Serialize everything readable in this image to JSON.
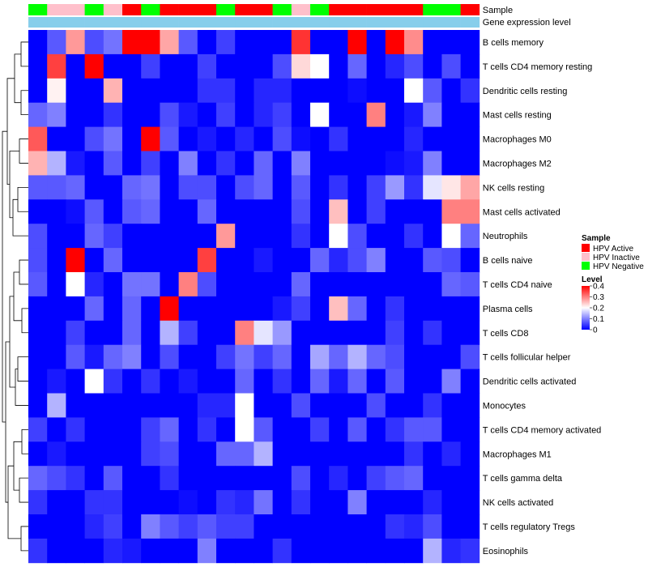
{
  "chart_data": {
    "type": "heatmap",
    "title": "",
    "annotation_rows": [
      {
        "label": "Sample"
      },
      {
        "label": "Gene expression level"
      }
    ],
    "sample_groups": [
      "HPV Negative",
      "HPV Inactive",
      "HPV Inactive",
      "HPV Negative",
      "HPV Inactive",
      "HPV Active",
      "HPV Negative",
      "HPV Active",
      "HPV Active",
      "HPV Active",
      "HPV Negative",
      "HPV Active",
      "HPV Active",
      "HPV Negative",
      "HPV Inactive",
      "HPV Negative",
      "HPV Active",
      "HPV Active",
      "HPV Active",
      "HPV Active",
      "HPV Active",
      "HPV Negative",
      "HPV Negative",
      "HPV Active"
    ],
    "rows": [
      "B cells memory",
      "T cells CD4 memory resting",
      "Dendritic cells resting",
      "Mast cells resting",
      "Macrophages M0",
      "Macrophages M2",
      "NK cells resting",
      "Mast cells activated",
      "Neutrophils",
      "B cells naive",
      "T cells CD4 naive",
      "Plasma cells",
      "T cells CD8",
      "T cells follicular helper",
      "Dendritic cells activated",
      "Monocytes",
      "T cells CD4 memory activated",
      "Macrophages M1",
      "T cells gamma delta",
      "NK cells activated",
      "T cells regulatory  Tregs",
      "Eosinophils"
    ],
    "values": [
      [
        0,
        0.07,
        0.28,
        0.06,
        0.09,
        0.4,
        0.4,
        0.27,
        0.07,
        0,
        0.05,
        0,
        0,
        0,
        0.36,
        0,
        0,
        0.4,
        0,
        0.4,
        0.29,
        0,
        0,
        0
      ],
      [
        0,
        0.35,
        0,
        0.4,
        0,
        0,
        0.05,
        0,
        0,
        0.05,
        0,
        0,
        0,
        0.06,
        0.23,
        0.2,
        0,
        0.08,
        0,
        0.03,
        0.06,
        0,
        0.06,
        0
      ],
      [
        0,
        0.21,
        0,
        0,
        0.26,
        0,
        0,
        0,
        0,
        0.04,
        0.04,
        0,
        0.03,
        0.03,
        0,
        0,
        0,
        0.01,
        0,
        0,
        0.2,
        0.07,
        0,
        0.04
      ],
      [
        0.08,
        0.1,
        0,
        0,
        0.04,
        0,
        0,
        0.06,
        0.02,
        0,
        0.05,
        0,
        0.03,
        0.05,
        0,
        0.2,
        0,
        0,
        0.3,
        0,
        0.02,
        0.1,
        0,
        0
      ],
      [
        0.33,
        0,
        0,
        0.06,
        0.09,
        0,
        0.4,
        0.07,
        0,
        0.02,
        0,
        0.03,
        0,
        0.06,
        0.01,
        0,
        0.04,
        0,
        0,
        0,
        0.03,
        0,
        0,
        0
      ],
      [
        0.26,
        0.14,
        0.02,
        0,
        0.07,
        0,
        0.05,
        0,
        0.1,
        0,
        0.04,
        0,
        0.08,
        0,
        0.1,
        0,
        0,
        0,
        0,
        0.01,
        0.02,
        0.1,
        0,
        0
      ],
      [
        0.07,
        0.07,
        0.08,
        0,
        0,
        0.08,
        0.09,
        0,
        0.06,
        0.06,
        0,
        0.06,
        0.08,
        0,
        0.07,
        0,
        0.04,
        0,
        0.05,
        0.12,
        0.04,
        0.18,
        0.22,
        0.27
      ],
      [
        0,
        0,
        0.01,
        0.07,
        0,
        0.07,
        0.08,
        0,
        0,
        0.08,
        0,
        0,
        0,
        0,
        0.06,
        0,
        0.25,
        0,
        0.05,
        0,
        0,
        0,
        0.3,
        0.3
      ],
      [
        0.06,
        0,
        0,
        0.08,
        0.05,
        0,
        0,
        0,
        0,
        0,
        0.28,
        0,
        0,
        0,
        0.04,
        0,
        0.2,
        0.06,
        0,
        0,
        0.04,
        0,
        0.2,
        0.08
      ],
      [
        0.06,
        0,
        0.4,
        0,
        0.08,
        0,
        0,
        0,
        0,
        0.35,
        0,
        0,
        0.02,
        0,
        0,
        0.08,
        0.03,
        0.06,
        0.1,
        0,
        0,
        0.07,
        0.06,
        0
      ],
      [
        0.07,
        0,
        0.2,
        0.03,
        0,
        0.09,
        0.09,
        0,
        0.3,
        0.06,
        0,
        0,
        0,
        0,
        0.08,
        0,
        0,
        0,
        0,
        0,
        0,
        0,
        0.08,
        0.07
      ],
      [
        0,
        0,
        0,
        0.08,
        0,
        0.08,
        0,
        0.4,
        0,
        0,
        0,
        0,
        0,
        0.02,
        0.05,
        0,
        0.25,
        0.08,
        0,
        0.04,
        0,
        0,
        0,
        0
      ],
      [
        0,
        0,
        0.05,
        0,
        0,
        0.08,
        0,
        0.14,
        0.05,
        0,
        0,
        0.3,
        0.18,
        0.12,
        0,
        0,
        0,
        0,
        0,
        0.05,
        0,
        0.04,
        0,
        0
      ],
      [
        0,
        0,
        0.07,
        0.02,
        0.08,
        0.1,
        0,
        0.06,
        0,
        0,
        0.05,
        0.09,
        0.05,
        0.08,
        0,
        0.13,
        0.08,
        0.14,
        0.08,
        0.06,
        0,
        0,
        0,
        0.06
      ],
      [
        0,
        0.02,
        0,
        0.2,
        0.04,
        0,
        0.04,
        0,
        0.02,
        0,
        0,
        0.08,
        0,
        0.04,
        0,
        0.08,
        0.02,
        0.08,
        0,
        0.07,
        0,
        0,
        0.1,
        0
      ],
      [
        0,
        0.14,
        0,
        0,
        0,
        0,
        0,
        0,
        0,
        0.03,
        0.03,
        0.2,
        0,
        0,
        0.06,
        0,
        0,
        0,
        0.06,
        0,
        0,
        0.04,
        0,
        0
      ],
      [
        0.05,
        0,
        0.04,
        0,
        0,
        0,
        0.05,
        0.08,
        0,
        0.04,
        0,
        0.2,
        0.07,
        0,
        0,
        0.05,
        0,
        0.07,
        0,
        0.04,
        0.07,
        0.07,
        0,
        0
      ],
      [
        0,
        0.02,
        0,
        0,
        0,
        0,
        0.05,
        0.06,
        0,
        0,
        0.08,
        0.08,
        0.14,
        0,
        0,
        0,
        0,
        0,
        0,
        0,
        0.04,
        0,
        0.03,
        0
      ],
      [
        0.08,
        0.06,
        0.04,
        0,
        0.07,
        0,
        0,
        0.04,
        0,
        0,
        0,
        0,
        0,
        0,
        0.06,
        0,
        0.03,
        0,
        0.05,
        0.07,
        0.08,
        0,
        0,
        0
      ],
      [
        0.04,
        0,
        0,
        0.04,
        0.04,
        0,
        0,
        0,
        0.01,
        0,
        0.04,
        0.03,
        0.09,
        0,
        0.04,
        0,
        0,
        0.1,
        0,
        0,
        0,
        0.03,
        0,
        0
      ],
      [
        0,
        0,
        0,
        0.03,
        0.05,
        0,
        0.1,
        0.07,
        0.05,
        0.07,
        0.05,
        0.05,
        0,
        0,
        0,
        0,
        0,
        0,
        0,
        0.04,
        0.03,
        0.06,
        0,
        0
      ],
      [
        0.04,
        0,
        0,
        0,
        0.03,
        0.02,
        0,
        0,
        0,
        0.1,
        0,
        0,
        0,
        0.04,
        0,
        0,
        0,
        0,
        0,
        0,
        0,
        0.14,
        0.03,
        0.04
      ]
    ],
    "color_scale": {
      "min": 0,
      "max": 0.4,
      "colors": [
        "#0000ff",
        "#ffffff",
        "#ff0000"
      ]
    },
    "legend": {
      "sample_title": "Sample",
      "groups": [
        {
          "name": "HPV Active",
          "color": "#ff0000"
        },
        {
          "name": "HPV Inactive",
          "color": "#ffc0cb"
        },
        {
          "name": "HPV Negative",
          "color": "#00ff00"
        }
      ],
      "level_title": "Level",
      "level_ticks": [
        "0.4",
        "0.3",
        "0.2",
        "0.1",
        "0"
      ]
    },
    "gene_expression_color": "#87ceeb",
    "dendrogram": "rows"
  }
}
